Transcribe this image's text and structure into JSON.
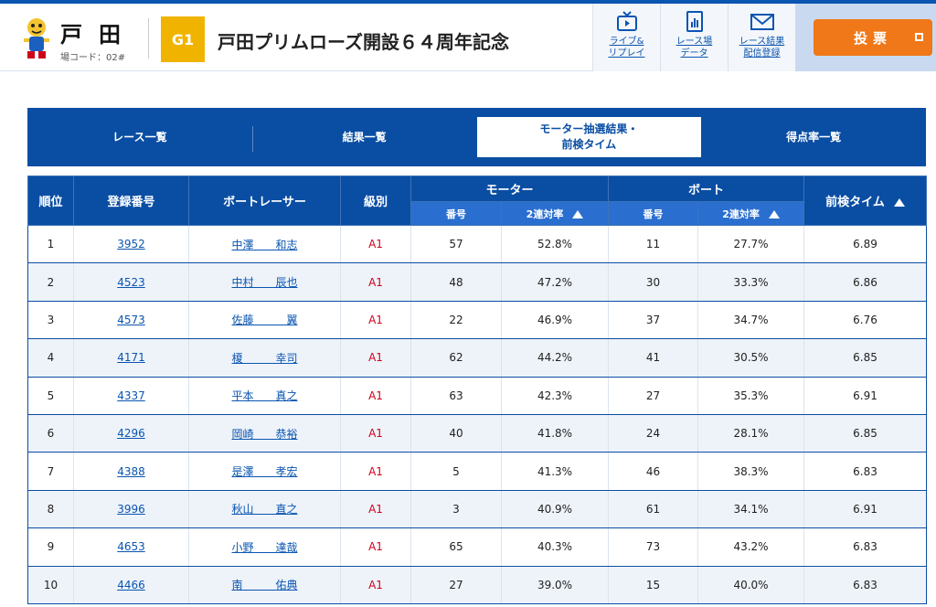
{
  "header": {
    "venue_name": "戸田",
    "venue_code": "場コード：02#",
    "grade": "G1",
    "race_title": "戸田プリムローズ開設６４周年記念",
    "nav": [
      {
        "label": "ライブ&\nリプレイ",
        "icon": "tv-icon"
      },
      {
        "label": "レース場\nデータ",
        "icon": "chart-doc-icon"
      },
      {
        "label": "レース結果\n配信登録",
        "icon": "mail-icon"
      }
    ],
    "vote_label": "投票"
  },
  "tabs": [
    {
      "label": "レース一覧"
    },
    {
      "label": "結果一覧"
    },
    {
      "label": "モーター抽選結果・\n前検タイム",
      "active": true
    },
    {
      "label": "得点率一覧"
    }
  ],
  "table": {
    "headers": {
      "rank": "順位",
      "reg_no": "登録番号",
      "racer": "ボートレーサー",
      "class": "級別",
      "motor": "モーター",
      "boat": "ボート",
      "pre_time": "前検タイム",
      "no": "番号",
      "rate2": "2連対率"
    },
    "rows": [
      {
        "rank": "1",
        "reg": "3952",
        "name": "中澤　　和志",
        "cls": "A1",
        "m_no": "57",
        "m_rate": "52.8%",
        "b_no": "11",
        "b_rate": "27.7%",
        "time": "6.89"
      },
      {
        "rank": "2",
        "reg": "4523",
        "name": "中村　　辰也",
        "cls": "A1",
        "m_no": "48",
        "m_rate": "47.2%",
        "b_no": "30",
        "b_rate": "33.3%",
        "time": "6.86"
      },
      {
        "rank": "3",
        "reg": "4573",
        "name": "佐藤　　　翼",
        "cls": "A1",
        "m_no": "22",
        "m_rate": "46.9%",
        "b_no": "37",
        "b_rate": "34.7%",
        "time": "6.76"
      },
      {
        "rank": "4",
        "reg": "4171",
        "name": "榎　　　幸司",
        "cls": "A1",
        "m_no": "62",
        "m_rate": "44.2%",
        "b_no": "41",
        "b_rate": "30.5%",
        "time": "6.85"
      },
      {
        "rank": "5",
        "reg": "4337",
        "name": "平本　　真之",
        "cls": "A1",
        "m_no": "63",
        "m_rate": "42.3%",
        "b_no": "27",
        "b_rate": "35.3%",
        "time": "6.91"
      },
      {
        "rank": "6",
        "reg": "4296",
        "name": "岡崎　　恭裕",
        "cls": "A1",
        "m_no": "40",
        "m_rate": "41.8%",
        "b_no": "24",
        "b_rate": "28.1%",
        "time": "6.85"
      },
      {
        "rank": "7",
        "reg": "4388",
        "name": "是澤　　孝宏",
        "cls": "A1",
        "m_no": "5",
        "m_rate": "41.3%",
        "b_no": "46",
        "b_rate": "38.3%",
        "time": "6.83"
      },
      {
        "rank": "8",
        "reg": "3996",
        "name": "秋山　　直之",
        "cls": "A1",
        "m_no": "3",
        "m_rate": "40.9%",
        "b_no": "61",
        "b_rate": "34.1%",
        "time": "6.91"
      },
      {
        "rank": "9",
        "reg": "4653",
        "name": "小野　　達哉",
        "cls": "A1",
        "m_no": "65",
        "m_rate": "40.3%",
        "b_no": "73",
        "b_rate": "43.2%",
        "time": "6.83"
      },
      {
        "rank": "10",
        "reg": "4466",
        "name": "南　　　佑典",
        "cls": "A1",
        "m_no": "27",
        "m_rate": "39.0%",
        "b_no": "15",
        "b_rate": "40.0%",
        "time": "6.83"
      }
    ]
  }
}
